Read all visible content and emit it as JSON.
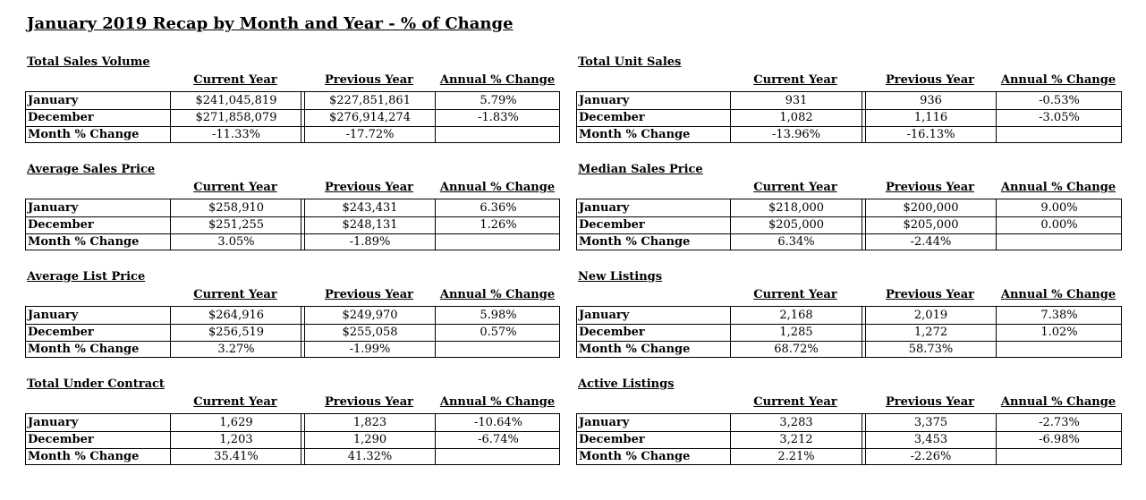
{
  "title": "January 2019 Recap by Month and Year - % of Change",
  "headers": {
    "current": "Current Year",
    "previous": "Previous Year",
    "annual": "Annual % Change"
  },
  "row_labels": [
    "January",
    "December",
    "Month % Change"
  ],
  "sections": {
    "total_sales_volume": {
      "title": "Total Sales Volume",
      "rows": [
        {
          "current": "$241,045,819",
          "previous": "$227,851,861",
          "annual": "5.79%"
        },
        {
          "current": "$271,858,079",
          "previous": "$276,914,274",
          "annual": "-1.83%"
        },
        {
          "current": "-11.33%",
          "previous": "-17.72%",
          "annual": ""
        }
      ]
    },
    "total_unit_sales": {
      "title": "Total Unit Sales",
      "rows": [
        {
          "current": "931",
          "previous": "936",
          "annual": "-0.53%"
        },
        {
          "current": "1,082",
          "previous": "1,116",
          "annual": "-3.05%"
        },
        {
          "current": "-13.96%",
          "previous": "-16.13%",
          "annual": ""
        }
      ]
    },
    "average_sales_price": {
      "title": "Average Sales Price",
      "rows": [
        {
          "current": "$258,910",
          "previous": "$243,431",
          "annual": "6.36%"
        },
        {
          "current": "$251,255",
          "previous": "$248,131",
          "annual": "1.26%"
        },
        {
          "current": "3.05%",
          "previous": "-1.89%",
          "annual": ""
        }
      ]
    },
    "median_sales_price": {
      "title": "Median Sales Price",
      "rows": [
        {
          "current": "$218,000",
          "previous": "$200,000",
          "annual": "9.00%"
        },
        {
          "current": "$205,000",
          "previous": "$205,000",
          "annual": "0.00%"
        },
        {
          "current": "6.34%",
          "previous": "-2.44%",
          "annual": ""
        }
      ]
    },
    "average_list_price": {
      "title": "Average List Price",
      "rows": [
        {
          "current": "$264,916",
          "previous": "$249,970",
          "annual": "5.98%"
        },
        {
          "current": "$256,519",
          "previous": "$255,058",
          "annual": "0.57%"
        },
        {
          "current": "3.27%",
          "previous": "-1.99%",
          "annual": ""
        }
      ]
    },
    "new_listings": {
      "title": "New Listings",
      "rows": [
        {
          "current": "2,168",
          "previous": "2,019",
          "annual": "7.38%"
        },
        {
          "current": "1,285",
          "previous": "1,272",
          "annual": "1.02%"
        },
        {
          "current": "68.72%",
          "previous": "58.73%",
          "annual": ""
        }
      ]
    },
    "total_under_contract": {
      "title": "Total Under Contract",
      "rows": [
        {
          "current": "1,629",
          "previous": "1,823",
          "annual": "-10.64%"
        },
        {
          "current": "1,203",
          "previous": "1,290",
          "annual": "-6.74%"
        },
        {
          "current": "35.41%",
          "previous": "41.32%",
          "annual": ""
        }
      ]
    },
    "active_listings": {
      "title": "Active Listings",
      "rows": [
        {
          "current": "3,283",
          "previous": "3,375",
          "annual": "-2.73%"
        },
        {
          "current": "3,212",
          "previous": "3,453",
          "annual": "-6.98%"
        },
        {
          "current": "2.21%",
          "previous": "-2.26%",
          "annual": ""
        }
      ]
    }
  }
}
